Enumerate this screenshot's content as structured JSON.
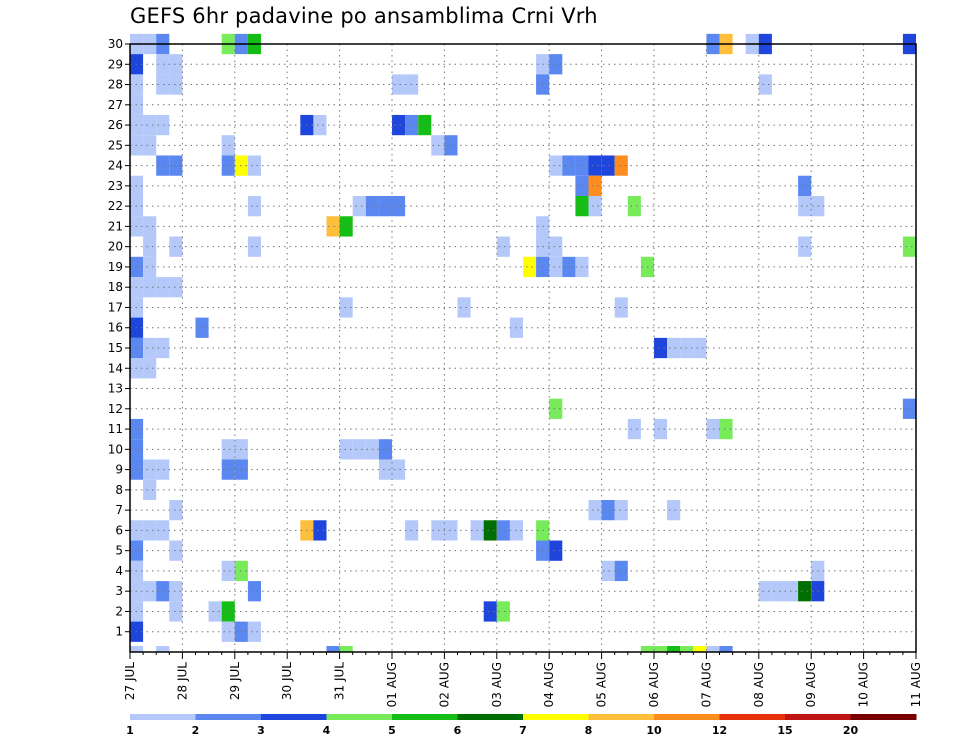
{
  "title": "GEFS 6hr padavine po ansamblima Crni Vrh",
  "chart_data": {
    "type": "heatmap",
    "title": "GEFS 6hr padavine po ansamblima Crni Vrh",
    "y_tick_labels": [
      "1",
      "2",
      "3",
      "4",
      "5",
      "6",
      "7",
      "8",
      "9",
      "10",
      "11",
      "12",
      "13",
      "14",
      "15",
      "16",
      "17",
      "18",
      "19",
      "20",
      "21",
      "22",
      "23",
      "24",
      "25",
      "26",
      "27",
      "28",
      "29",
      "30"
    ],
    "ylim": [
      0,
      30
    ],
    "x_tick_labels": [
      "27 JUL",
      "28 JUL",
      "29 JUL",
      "30 JUL",
      "31 JUL",
      "01 AUG",
      "02 AUG",
      "03 AUG",
      "04 AUG",
      "05 AUG",
      "06 AUG",
      "07 AUG",
      "08 AUG",
      "09 AUG",
      "10 AUG",
      "11 AUG"
    ],
    "x_unit": "6-hour step from 27 JUL 00Z",
    "xlim": [
      0,
      60
    ],
    "grid": true,
    "colorbar": {
      "labels": [
        "1",
        "2",
        "3",
        "4",
        "5",
        "6",
        "7",
        "8",
        "10",
        "12",
        "15",
        "20"
      ],
      "colors": [
        "#b4c8fa",
        "#5a87f0",
        "#1e46dc",
        "#78eb5a",
        "#14be14",
        "#006e00",
        "#ffff00",
        "#ffbe3c",
        "#ff8c1e",
        "#e6320a",
        "#be1414",
        "#780000"
      ]
    },
    "cells": [
      {
        "t": 0,
        "m": 30,
        "v": 1
      },
      {
        "t": 1,
        "m": 30,
        "v": 1
      },
      {
        "t": 2,
        "m": 30,
        "v": 2
      },
      {
        "t": 7,
        "m": 30,
        "v": 4
      },
      {
        "t": 8,
        "m": 30,
        "v": 2
      },
      {
        "t": 9,
        "m": 30,
        "v": 5
      },
      {
        "t": 44,
        "m": 30,
        "v": 2
      },
      {
        "t": 45,
        "m": 30,
        "v": 8
      },
      {
        "t": 47,
        "m": 30,
        "v": 1
      },
      {
        "t": 48,
        "m": 30,
        "v": 3
      },
      {
        "t": 59,
        "m": 30,
        "v": 3
      },
      {
        "t": 0,
        "m": 29,
        "v": 3
      },
      {
        "t": 2,
        "m": 29,
        "v": 1
      },
      {
        "t": 3,
        "m": 29,
        "v": 1
      },
      {
        "t": 31,
        "m": 29,
        "v": 1
      },
      {
        "t": 32,
        "m": 29,
        "v": 2
      },
      {
        "t": 0,
        "m": 28,
        "v": 1
      },
      {
        "t": 2,
        "m": 28,
        "v": 1
      },
      {
        "t": 3,
        "m": 28,
        "v": 1
      },
      {
        "t": 20,
        "m": 28,
        "v": 1
      },
      {
        "t": 21,
        "m": 28,
        "v": 1
      },
      {
        "t": 31,
        "m": 28,
        "v": 2
      },
      {
        "t": 48,
        "m": 28,
        "v": 1
      },
      {
        "t": 0,
        "m": 27,
        "v": 1
      },
      {
        "t": 0,
        "m": 26,
        "v": 1
      },
      {
        "t": 1,
        "m": 26,
        "v": 1
      },
      {
        "t": 2,
        "m": 26,
        "v": 1
      },
      {
        "t": 13,
        "m": 26,
        "v": 3
      },
      {
        "t": 14,
        "m": 26,
        "v": 1
      },
      {
        "t": 20,
        "m": 26,
        "v": 3
      },
      {
        "t": 21,
        "m": 26,
        "v": 2
      },
      {
        "t": 22,
        "m": 26,
        "v": 5
      },
      {
        "t": 0,
        "m": 25,
        "v": 1
      },
      {
        "t": 1,
        "m": 25,
        "v": 1
      },
      {
        "t": 7,
        "m": 25,
        "v": 1
      },
      {
        "t": 23,
        "m": 25,
        "v": 1
      },
      {
        "t": 24,
        "m": 25,
        "v": 2
      },
      {
        "t": 2,
        "m": 24,
        "v": 2
      },
      {
        "t": 3,
        "m": 24,
        "v": 2
      },
      {
        "t": 7,
        "m": 24,
        "v": 2
      },
      {
        "t": 8,
        "m": 24,
        "v": 7
      },
      {
        "t": 9,
        "m": 24,
        "v": 1
      },
      {
        "t": 32,
        "m": 24,
        "v": 1
      },
      {
        "t": 33,
        "m": 24,
        "v": 2
      },
      {
        "t": 34,
        "m": 24,
        "v": 2
      },
      {
        "t": 35,
        "m": 24,
        "v": 3
      },
      {
        "t": 36,
        "m": 24,
        "v": 3
      },
      {
        "t": 37,
        "m": 24,
        "v": 10
      },
      {
        "t": 0,
        "m": 23,
        "v": 1
      },
      {
        "t": 34,
        "m": 23,
        "v": 2
      },
      {
        "t": 35,
        "m": 23,
        "v": 10
      },
      {
        "t": 51,
        "m": 23,
        "v": 2
      },
      {
        "t": 0,
        "m": 22,
        "v": 1
      },
      {
        "t": 9,
        "m": 22,
        "v": 1
      },
      {
        "t": 17,
        "m": 22,
        "v": 1
      },
      {
        "t": 18,
        "m": 22,
        "v": 2
      },
      {
        "t": 19,
        "m": 22,
        "v": 2
      },
      {
        "t": 20,
        "m": 22,
        "v": 2
      },
      {
        "t": 34,
        "m": 22,
        "v": 5
      },
      {
        "t": 35,
        "m": 22,
        "v": 1
      },
      {
        "t": 38,
        "m": 22,
        "v": 4
      },
      {
        "t": 51,
        "m": 22,
        "v": 1
      },
      {
        "t": 52,
        "m": 22,
        "v": 1
      },
      {
        "t": 0,
        "m": 21,
        "v": 1
      },
      {
        "t": 1,
        "m": 21,
        "v": 1
      },
      {
        "t": 15,
        "m": 21,
        "v": 8
      },
      {
        "t": 16,
        "m": 21,
        "v": 5
      },
      {
        "t": 31,
        "m": 21,
        "v": 1
      },
      {
        "t": 1,
        "m": 20,
        "v": 1
      },
      {
        "t": 3,
        "m": 20,
        "v": 1
      },
      {
        "t": 9,
        "m": 20,
        "v": 1
      },
      {
        "t": 28,
        "m": 20,
        "v": 1
      },
      {
        "t": 31,
        "m": 20,
        "v": 1
      },
      {
        "t": 32,
        "m": 20,
        "v": 1
      },
      {
        "t": 51,
        "m": 20,
        "v": 1
      },
      {
        "t": 59,
        "m": 20,
        "v": 4
      },
      {
        "t": 0,
        "m": 19,
        "v": 2
      },
      {
        "t": 1,
        "m": 19,
        "v": 1
      },
      {
        "t": 30,
        "m": 19,
        "v": 7
      },
      {
        "t": 31,
        "m": 19,
        "v": 2
      },
      {
        "t": 32,
        "m": 19,
        "v": 1
      },
      {
        "t": 33,
        "m": 19,
        "v": 2
      },
      {
        "t": 34,
        "m": 19,
        "v": 1
      },
      {
        "t": 39,
        "m": 19,
        "v": 4
      },
      {
        "t": 0,
        "m": 18,
        "v": 1
      },
      {
        "t": 1,
        "m": 18,
        "v": 1
      },
      {
        "t": 2,
        "m": 18,
        "v": 1
      },
      {
        "t": 3,
        "m": 18,
        "v": 1
      },
      {
        "t": 0,
        "m": 17,
        "v": 1
      },
      {
        "t": 16,
        "m": 17,
        "v": 1
      },
      {
        "t": 25,
        "m": 17,
        "v": 1
      },
      {
        "t": 37,
        "m": 17,
        "v": 1
      },
      {
        "t": 0,
        "m": 16,
        "v": 3
      },
      {
        "t": 5,
        "m": 16,
        "v": 2
      },
      {
        "t": 29,
        "m": 16,
        "v": 1
      },
      {
        "t": 0,
        "m": 15,
        "v": 2
      },
      {
        "t": 1,
        "m": 15,
        "v": 1
      },
      {
        "t": 2,
        "m": 15,
        "v": 1
      },
      {
        "t": 40,
        "m": 15,
        "v": 3
      },
      {
        "t": 41,
        "m": 15,
        "v": 1
      },
      {
        "t": 42,
        "m": 15,
        "v": 1
      },
      {
        "t": 43,
        "m": 15,
        "v": 1
      },
      {
        "t": 0,
        "m": 14,
        "v": 1
      },
      {
        "t": 1,
        "m": 14,
        "v": 1
      },
      {
        "t": 32,
        "m": 12,
        "v": 4
      },
      {
        "t": 59,
        "m": 12,
        "v": 2
      },
      {
        "t": 0,
        "m": 11,
        "v": 2
      },
      {
        "t": 38,
        "m": 11,
        "v": 1
      },
      {
        "t": 40,
        "m": 11,
        "v": 1
      },
      {
        "t": 44,
        "m": 11,
        "v": 1
      },
      {
        "t": 45,
        "m": 11,
        "v": 4
      },
      {
        "t": 0,
        "m": 10,
        "v": 2
      },
      {
        "t": 7,
        "m": 10,
        "v": 1
      },
      {
        "t": 8,
        "m": 10,
        "v": 1
      },
      {
        "t": 16,
        "m": 10,
        "v": 1
      },
      {
        "t": 17,
        "m": 10,
        "v": 1
      },
      {
        "t": 18,
        "m": 10,
        "v": 1
      },
      {
        "t": 19,
        "m": 10,
        "v": 2
      },
      {
        "t": 0,
        "m": 9,
        "v": 2
      },
      {
        "t": 1,
        "m": 9,
        "v": 1
      },
      {
        "t": 2,
        "m": 9,
        "v": 1
      },
      {
        "t": 7,
        "m": 9,
        "v": 2
      },
      {
        "t": 8,
        "m": 9,
        "v": 2
      },
      {
        "t": 19,
        "m": 9,
        "v": 1
      },
      {
        "t": 20,
        "m": 9,
        "v": 1
      },
      {
        "t": 1,
        "m": 8,
        "v": 1
      },
      {
        "t": 3,
        "m": 7,
        "v": 1
      },
      {
        "t": 35,
        "m": 7,
        "v": 1
      },
      {
        "t": 36,
        "m": 7,
        "v": 2
      },
      {
        "t": 37,
        "m": 7,
        "v": 1
      },
      {
        "t": 41,
        "m": 7,
        "v": 1
      },
      {
        "t": 0,
        "m": 6,
        "v": 1
      },
      {
        "t": 1,
        "m": 6,
        "v": 1
      },
      {
        "t": 2,
        "m": 6,
        "v": 1
      },
      {
        "t": 13,
        "m": 6,
        "v": 8
      },
      {
        "t": 14,
        "m": 6,
        "v": 3
      },
      {
        "t": 21,
        "m": 6,
        "v": 1
      },
      {
        "t": 23,
        "m": 6,
        "v": 1
      },
      {
        "t": 24,
        "m": 6,
        "v": 1
      },
      {
        "t": 26,
        "m": 6,
        "v": 1
      },
      {
        "t": 27,
        "m": 6,
        "v": 6
      },
      {
        "t": 28,
        "m": 6,
        "v": 2
      },
      {
        "t": 29,
        "m": 6,
        "v": 1
      },
      {
        "t": 31,
        "m": 6,
        "v": 4
      },
      {
        "t": 0,
        "m": 5,
        "v": 2
      },
      {
        "t": 3,
        "m": 5,
        "v": 1
      },
      {
        "t": 31,
        "m": 5,
        "v": 2
      },
      {
        "t": 32,
        "m": 5,
        "v": 3
      },
      {
        "t": 0,
        "m": 4,
        "v": 1
      },
      {
        "t": 7,
        "m": 4,
        "v": 1
      },
      {
        "t": 8,
        "m": 4,
        "v": 4
      },
      {
        "t": 36,
        "m": 4,
        "v": 1
      },
      {
        "t": 37,
        "m": 4,
        "v": 2
      },
      {
        "t": 52,
        "m": 4,
        "v": 1
      },
      {
        "t": 0,
        "m": 3,
        "v": 1
      },
      {
        "t": 1,
        "m": 3,
        "v": 1
      },
      {
        "t": 2,
        "m": 3,
        "v": 2
      },
      {
        "t": 3,
        "m": 3,
        "v": 1
      },
      {
        "t": 9,
        "m": 3,
        "v": 2
      },
      {
        "t": 48,
        "m": 3,
        "v": 1
      },
      {
        "t": 49,
        "m": 3,
        "v": 1
      },
      {
        "t": 50,
        "m": 3,
        "v": 1
      },
      {
        "t": 51,
        "m": 3,
        "v": 6
      },
      {
        "t": 52,
        "m": 3,
        "v": 3
      },
      {
        "t": 0,
        "m": 2,
        "v": 1
      },
      {
        "t": 3,
        "m": 2,
        "v": 1
      },
      {
        "t": 6,
        "m": 2,
        "v": 1
      },
      {
        "t": 7,
        "m": 2,
        "v": 5
      },
      {
        "t": 27,
        "m": 2,
        "v": 3
      },
      {
        "t": 28,
        "m": 2,
        "v": 4
      },
      {
        "t": 0,
        "m": 1,
        "v": 3
      },
      {
        "t": 7,
        "m": 1,
        "v": 1
      },
      {
        "t": 8,
        "m": 1,
        "v": 2
      },
      {
        "t": 9,
        "m": 1,
        "v": 1
      },
      {
        "t": 0,
        "m": 0,
        "v": 1
      },
      {
        "t": 2,
        "m": 0,
        "v": 1
      },
      {
        "t": 15,
        "m": 0,
        "v": 2
      },
      {
        "t": 16,
        "m": 0,
        "v": 4
      },
      {
        "t": 39,
        "m": 0,
        "v": 4
      },
      {
        "t": 40,
        "m": 0,
        "v": 4
      },
      {
        "t": 41,
        "m": 0,
        "v": 5
      },
      {
        "t": 42,
        "m": 0,
        "v": 4
      },
      {
        "t": 43,
        "m": 0,
        "v": 7
      },
      {
        "t": 44,
        "m": 0,
        "v": 1
      },
      {
        "t": 45,
        "m": 0,
        "v": 2
      }
    ]
  }
}
